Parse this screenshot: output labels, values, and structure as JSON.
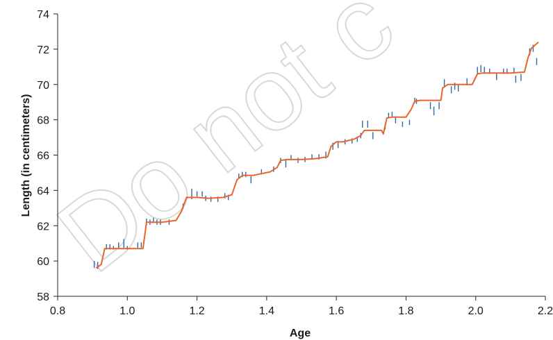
{
  "chart_data": {
    "type": "line",
    "xlabel": "Age",
    "ylabel": "Length (in centimeters)",
    "xlim": [
      0.8,
      2.2
    ],
    "ylim": [
      58,
      74
    ],
    "x_ticks": [
      "0.8",
      "1.0",
      "1.2",
      "1.4",
      "1.6",
      "1.8",
      "2.0",
      "2.2"
    ],
    "y_ticks": [
      "58",
      "60",
      "62",
      "64",
      "66",
      "68",
      "70",
      "72",
      "74"
    ],
    "grid": false,
    "watermark": "Do not c",
    "colors": {
      "fit": "#e8642a",
      "measurements": "#2b6aa8",
      "axis": "#222222"
    },
    "series": [
      {
        "type": "step-line",
        "x": [
          0.91,
          0.925,
          0.935,
          1.045,
          1.055,
          1.1,
          1.14,
          1.155,
          1.17,
          1.2,
          1.235,
          1.275,
          1.3,
          1.315,
          1.33,
          1.36,
          1.41,
          1.43,
          1.44,
          1.46,
          1.5,
          1.54,
          1.575,
          1.585,
          1.6,
          1.62,
          1.65,
          1.67,
          1.68,
          1.73,
          1.735,
          1.745,
          1.76,
          1.8,
          1.815,
          1.825,
          1.84,
          1.9,
          1.905,
          1.92,
          1.95,
          1.99,
          2.005,
          2.02,
          2.05,
          2.1,
          2.14,
          2.15,
          2.16,
          2.18
        ],
        "y": [
          59.6,
          59.8,
          60.7,
          60.7,
          62.2,
          62.2,
          62.3,
          62.8,
          63.6,
          63.6,
          63.55,
          63.6,
          63.75,
          64.6,
          64.85,
          64.85,
          65.05,
          65.3,
          65.7,
          65.75,
          65.75,
          65.8,
          65.9,
          66.5,
          66.75,
          66.75,
          66.9,
          67.1,
          67.4,
          67.4,
          67.2,
          68.1,
          68.15,
          68.15,
          68.6,
          69.05,
          69.1,
          69.1,
          69.8,
          70.0,
          70.0,
          70.0,
          70.6,
          70.65,
          70.65,
          70.65,
          70.7,
          71.5,
          72.05,
          72.4
        ]
      },
      {
        "type": "error-bars",
        "points": [
          [
            0.905,
            59.8,
            0.4
          ],
          [
            0.915,
            59.75,
            0.4
          ],
          [
            0.94,
            60.8,
            0.3
          ],
          [
            0.95,
            60.8,
            0.3
          ],
          [
            0.96,
            60.75,
            0.2
          ],
          [
            0.975,
            60.9,
            0.3
          ],
          [
            0.99,
            61.0,
            0.5
          ],
          [
            1.0,
            60.75,
            0.2
          ],
          [
            1.03,
            60.9,
            0.3
          ],
          [
            1.04,
            60.9,
            0.3
          ],
          [
            1.055,
            62.2,
            0.4
          ],
          [
            1.065,
            62.2,
            0.3
          ],
          [
            1.075,
            62.3,
            0.3
          ],
          [
            1.085,
            62.2,
            0.3
          ],
          [
            1.095,
            62.2,
            0.3
          ],
          [
            1.12,
            62.2,
            0.3
          ],
          [
            1.16,
            63.1,
            0.3
          ],
          [
            1.185,
            63.8,
            0.6
          ],
          [
            1.2,
            63.8,
            0.3
          ],
          [
            1.215,
            63.8,
            0.3
          ],
          [
            1.225,
            63.55,
            0.3
          ],
          [
            1.24,
            63.5,
            0.3
          ],
          [
            1.26,
            63.5,
            0.3
          ],
          [
            1.28,
            63.7,
            0.3
          ],
          [
            1.29,
            63.6,
            0.3
          ],
          [
            1.32,
            64.8,
            0.3
          ],
          [
            1.33,
            64.9,
            0.3
          ],
          [
            1.34,
            64.9,
            0.3
          ],
          [
            1.355,
            64.6,
            0.4
          ],
          [
            1.385,
            65.05,
            0.3
          ],
          [
            1.42,
            65.2,
            0.3
          ],
          [
            1.44,
            65.7,
            0.3
          ],
          [
            1.455,
            65.5,
            0.4
          ],
          [
            1.47,
            65.85,
            0.3
          ],
          [
            1.49,
            65.7,
            0.3
          ],
          [
            1.51,
            65.75,
            0.3
          ],
          [
            1.53,
            65.9,
            0.3
          ],
          [
            1.55,
            65.9,
            0.3
          ],
          [
            1.57,
            66.0,
            0.4
          ],
          [
            1.59,
            66.5,
            0.4
          ],
          [
            1.605,
            66.6,
            0.4
          ],
          [
            1.625,
            66.75,
            0.3
          ],
          [
            1.645,
            66.8,
            0.3
          ],
          [
            1.66,
            66.9,
            0.3
          ],
          [
            1.67,
            67.1,
            0.3
          ],
          [
            1.675,
            67.75,
            0.4
          ],
          [
            1.69,
            67.75,
            0.4
          ],
          [
            1.705,
            67.1,
            0.4
          ],
          [
            1.74,
            67.6,
            0.3
          ],
          [
            1.75,
            68.25,
            0.3
          ],
          [
            1.76,
            68.3,
            0.3
          ],
          [
            1.77,
            68.0,
            0.4
          ],
          [
            1.79,
            67.75,
            0.3
          ],
          [
            1.81,
            67.85,
            0.3
          ],
          [
            1.825,
            69.1,
            0.3
          ],
          [
            1.83,
            69.05,
            0.3
          ],
          [
            1.87,
            68.8,
            0.4
          ],
          [
            1.88,
            68.5,
            0.5
          ],
          [
            1.895,
            68.8,
            0.4
          ],
          [
            1.91,
            70.1,
            0.4
          ],
          [
            1.93,
            69.7,
            0.4
          ],
          [
            1.94,
            69.9,
            0.4
          ],
          [
            1.95,
            69.8,
            0.4
          ],
          [
            1.975,
            70.15,
            0.4
          ],
          [
            2.005,
            70.8,
            0.4
          ],
          [
            2.015,
            70.9,
            0.4
          ],
          [
            2.025,
            70.8,
            0.4
          ],
          [
            2.04,
            70.75,
            0.3
          ],
          [
            2.06,
            70.45,
            0.4
          ],
          [
            2.08,
            70.75,
            0.3
          ],
          [
            2.09,
            70.75,
            0.3
          ],
          [
            2.11,
            70.8,
            0.3
          ],
          [
            2.115,
            70.3,
            0.4
          ],
          [
            2.13,
            70.4,
            0.4
          ],
          [
            2.155,
            71.85,
            0.4
          ],
          [
            2.165,
            72.05,
            0.4
          ],
          [
            2.175,
            71.3,
            0.4
          ]
        ]
      }
    ]
  }
}
